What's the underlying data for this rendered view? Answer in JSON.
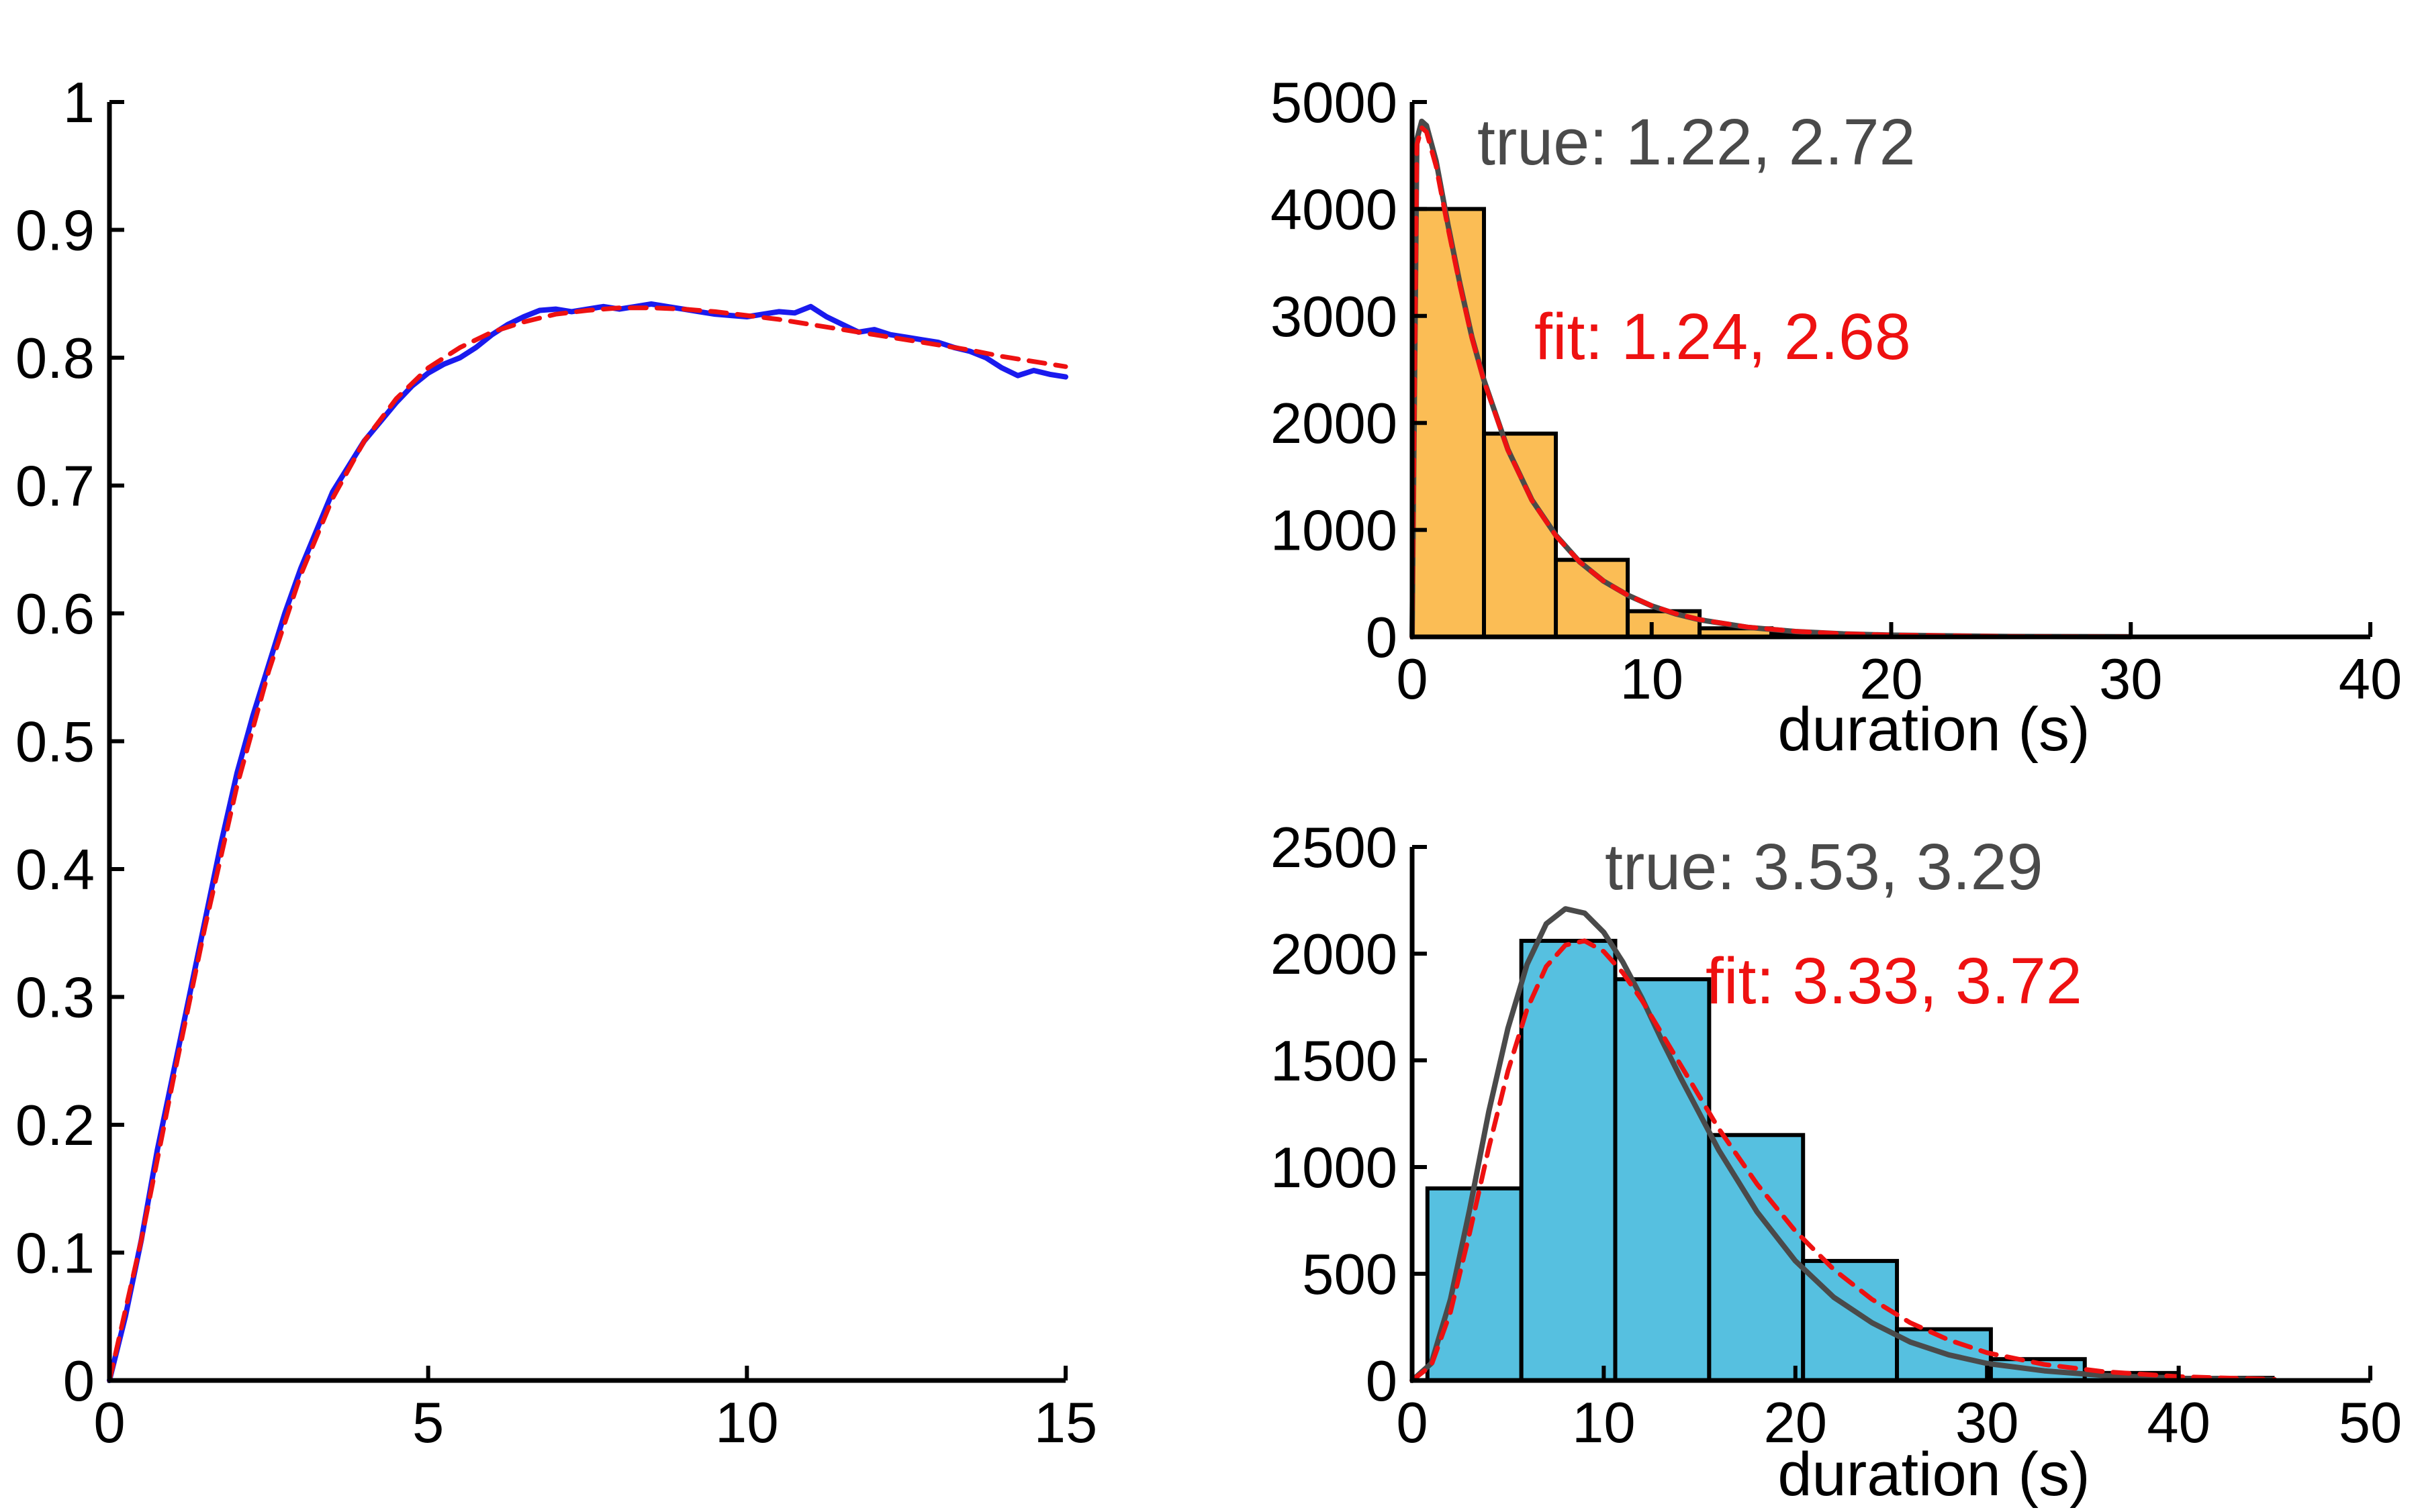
{
  "chart_data": [
    {
      "id": "left",
      "type": "line",
      "title": "",
      "xlabel": "",
      "ylabel": "",
      "xlim": [
        0,
        15
      ],
      "ylim": [
        0,
        1
      ],
      "x_ticks": [
        "0",
        "5",
        "10",
        "15"
      ],
      "x_tick_values": [
        0,
        5,
        10,
        15
      ],
      "y_ticks": [
        "0",
        "0.1",
        "0.2",
        "0.3",
        "0.4",
        "0.5",
        "0.6",
        "0.7",
        "0.8",
        "0.9",
        "1"
      ],
      "y_tick_values": [
        0,
        0.1,
        0.2,
        0.3,
        0.4,
        0.5,
        0.6,
        0.7,
        0.8,
        0.9,
        1
      ],
      "grid": false,
      "series": [
        {
          "style": "solid",
          "color": "#1a1aee",
          "x": [
            0,
            0.25,
            0.5,
            0.75,
            1,
            1.25,
            1.5,
            1.75,
            2,
            2.25,
            2.5,
            2.75,
            3,
            3.25,
            3.5,
            3.75,
            4,
            4.25,
            4.5,
            4.75,
            5,
            5.25,
            5.5,
            5.75,
            6,
            6.25,
            6.5,
            6.75,
            7,
            7.25,
            7.5,
            7.75,
            8,
            8.25,
            8.5,
            8.75,
            9,
            9.25,
            9.5,
            9.75,
            10,
            10.25,
            10.5,
            10.75,
            11,
            11.25,
            11.5,
            11.75,
            12,
            12.25,
            12.5,
            12.75,
            13,
            13.25,
            13.5,
            13.75,
            14,
            14.25,
            14.5,
            14.75,
            15
          ],
          "y": [
            0,
            0.05,
            0.11,
            0.18,
            0.24,
            0.3,
            0.36,
            0.42,
            0.475,
            0.52,
            0.56,
            0.6,
            0.635,
            0.665,
            0.695,
            0.715,
            0.735,
            0.75,
            0.765,
            0.778,
            0.788,
            0.795,
            0.8,
            0.808,
            0.818,
            0.826,
            0.832,
            0.837,
            0.838,
            0.836,
            0.838,
            0.84,
            0.838,
            0.84,
            0.842,
            0.84,
            0.838,
            0.836,
            0.834,
            0.833,
            0.832,
            0.834,
            0.836,
            0.835,
            0.84,
            0.832,
            0.826,
            0.82,
            0.822,
            0.818,
            0.816,
            0.814,
            0.812,
            0.808,
            0.805,
            0.8,
            0.792,
            0.786,
            0.79,
            0.787,
            0.785
          ]
        },
        {
          "style": "dashed",
          "color": "#ee1111",
          "x": [
            0,
            0.5,
            1,
            1.5,
            2,
            2.5,
            3,
            3.5,
            4,
            4.5,
            5,
            5.5,
            6,
            6.5,
            7,
            7.5,
            8,
            8.5,
            9,
            9.5,
            10,
            10.5,
            11,
            11.5,
            12,
            12.5,
            13,
            13.5,
            14,
            14.5,
            15
          ],
          "y": [
            0,
            0.11,
            0.235,
            0.355,
            0.465,
            0.555,
            0.63,
            0.69,
            0.735,
            0.768,
            0.792,
            0.808,
            0.82,
            0.828,
            0.834,
            0.837,
            0.839,
            0.839,
            0.838,
            0.836,
            0.833,
            0.83,
            0.826,
            0.822,
            0.818,
            0.814,
            0.81,
            0.806,
            0.801,
            0.797,
            0.793
          ]
        }
      ]
    },
    {
      "id": "top-right",
      "type": "bar",
      "title": "",
      "xlabel": "duration (s)",
      "ylabel": "",
      "xlim": [
        0,
        40
      ],
      "ylim": [
        0,
        5000
      ],
      "x_ticks": [
        "0",
        "10",
        "20",
        "30",
        "40"
      ],
      "x_tick_values": [
        0,
        10,
        20,
        30,
        40
      ],
      "y_ticks": [
        "0",
        "1000",
        "2000",
        "3000",
        "4000",
        "5000"
      ],
      "y_tick_values": [
        0,
        1000,
        2000,
        3000,
        4000,
        5000
      ],
      "grid": false,
      "bar_color": "#fbbd55",
      "bins": [
        {
          "start": 0,
          "end": 3,
          "value": 4000
        },
        {
          "start": 3,
          "end": 6,
          "value": 1900
        },
        {
          "start": 6,
          "end": 9,
          "value": 720
        },
        {
          "start": 9,
          "end": 12,
          "value": 240
        },
        {
          "start": 12,
          "end": 15,
          "value": 80
        },
        {
          "start": 15,
          "end": 18,
          "value": 25
        },
        {
          "start": 18,
          "end": 21,
          "value": 10
        },
        {
          "start": 21,
          "end": 24,
          "value": 5
        }
      ],
      "curves": [
        {
          "style": "solid",
          "color": "#4a4a4a",
          "x": [
            0,
            0.2,
            0.4,
            0.6,
            1,
            1.5,
            2,
            2.5,
            3,
            4,
            5,
            6,
            7,
            8,
            9,
            10,
            11,
            12,
            14,
            16,
            18,
            20,
            25,
            30
          ],
          "y": [
            0,
            4650,
            4820,
            4780,
            4450,
            3850,
            3300,
            2800,
            2400,
            1750,
            1280,
            950,
            700,
            520,
            390,
            290,
            215,
            160,
            90,
            50,
            28,
            16,
            4,
            1
          ]
        },
        {
          "style": "dashed",
          "color": "#ee1111",
          "x": [
            0,
            0.2,
            0.4,
            0.6,
            1,
            1.5,
            2,
            2.5,
            3,
            4,
            5,
            6,
            7,
            8,
            9,
            10,
            11,
            12,
            14,
            16,
            18,
            20,
            25,
            30
          ],
          "y": [
            0,
            4600,
            4760,
            4720,
            4400,
            3820,
            3280,
            2790,
            2390,
            1745,
            1275,
            945,
            700,
            520,
            390,
            292,
            218,
            162,
            92,
            52,
            29,
            17,
            4,
            1
          ]
        }
      ],
      "annotations": [
        {
          "text": "true: 1.22, 2.72",
          "color": "#4a4a4a"
        },
        {
          "text": "fit: 1.24, 2.68",
          "color": "#ee1111"
        }
      ]
    },
    {
      "id": "bottom-right",
      "type": "bar",
      "title": "",
      "xlabel": "duration (s)",
      "ylabel": "",
      "xlim": [
        0,
        50
      ],
      "ylim": [
        0,
        2500
      ],
      "x_ticks": [
        "0",
        "10",
        "20",
        "30",
        "40",
        "50"
      ],
      "x_tick_values": [
        0,
        10,
        20,
        30,
        40,
        50
      ],
      "y_ticks": [
        "0",
        "500",
        "1000",
        "1500",
        "2000",
        "2500"
      ],
      "y_tick_values": [
        0,
        500,
        1000,
        1500,
        2000,
        2500
      ],
      "grid": false,
      "bar_color": "#56c0e0",
      "bins": [
        {
          "start": 0.8,
          "end": 5.7,
          "value": 900
        },
        {
          "start": 5.7,
          "end": 10.6,
          "value": 2060
        },
        {
          "start": 10.6,
          "end": 15.5,
          "value": 1880
        },
        {
          "start": 15.5,
          "end": 20.4,
          "value": 1150
        },
        {
          "start": 20.4,
          "end": 25.3,
          "value": 560
        },
        {
          "start": 25.3,
          "end": 30.2,
          "value": 240
        },
        {
          "start": 30.2,
          "end": 35.1,
          "value": 100
        },
        {
          "start": 35.1,
          "end": 40,
          "value": 35
        },
        {
          "start": 40,
          "end": 44.9,
          "value": 12
        }
      ],
      "curves": [
        {
          "style": "solid",
          "color": "#4a4a4a",
          "x": [
            0,
            1,
            2,
            3,
            4,
            5,
            6,
            7,
            8,
            9,
            10,
            11,
            12,
            13,
            14,
            16,
            18,
            20,
            22,
            24,
            26,
            28,
            30,
            33,
            36,
            40,
            45
          ],
          "y": [
            0,
            80,
            380,
            800,
            1260,
            1650,
            1950,
            2140,
            2210,
            2190,
            2100,
            1960,
            1790,
            1600,
            1420,
            1080,
            790,
            560,
            390,
            270,
            180,
            120,
            80,
            45,
            24,
            10,
            3
          ]
        },
        {
          "style": "dashed",
          "color": "#ee1111",
          "x": [
            0,
            1,
            2,
            3,
            4,
            5,
            6,
            7,
            8,
            9,
            10,
            11,
            12,
            13,
            14,
            16,
            18,
            20,
            22,
            24,
            26,
            28,
            30,
            33,
            36,
            40,
            45
          ],
          "y": [
            0,
            70,
            320,
            690,
            1090,
            1450,
            1740,
            1940,
            2040,
            2060,
            2010,
            1910,
            1780,
            1630,
            1480,
            1180,
            920,
            700,
            520,
            380,
            270,
            190,
            130,
            75,
            42,
            18,
            5
          ]
        }
      ],
      "annotations": [
        {
          "text": "true: 3.53, 3.29",
          "color": "#4a4a4a"
        },
        {
          "text": "fit: 3.33, 3.72",
          "color": "#ee1111"
        }
      ]
    }
  ]
}
